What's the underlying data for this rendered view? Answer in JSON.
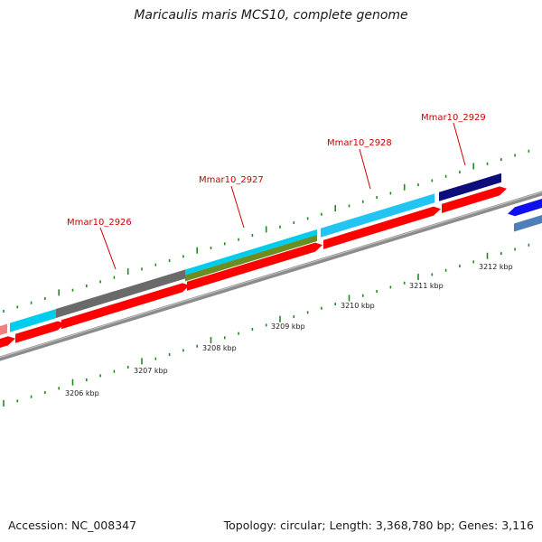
{
  "title": "Maricaulis maris MCS10, complete genome",
  "footer": {
    "accession": "Accession: NC_008347",
    "summary": "Topology: circular; Length: 3,368,780 bp; Genes: 3,116"
  },
  "colors": {
    "tick": "#1e8a1e",
    "backbone": "#8c8c8c",
    "gene_label": "#cc0000",
    "cds": "#ff0000",
    "gene_cyan": "#00ccee",
    "gene_light_blue": "#22c4f4",
    "gene_grey": "#6a6a6a",
    "gene_olive": "#6b8e23",
    "gene_navy": "#0c0c7a",
    "gene_blue": "#1010ee",
    "gene_steel": "#4f7fb8",
    "gene_pink": "#f08080"
  },
  "gene_labels": [
    {
      "text": "Mmar10_2926"
    },
    {
      "text": "Mmar10_2927"
    },
    {
      "text": "Mmar10_2928"
    },
    {
      "text": "Mmar10_2929"
    }
  ],
  "kbp_labels": [
    {
      "text": "3206 kbp"
    },
    {
      "text": "3207 kbp"
    },
    {
      "text": "3208 kbp"
    },
    {
      "text": "3209 kbp"
    },
    {
      "text": "3210 kbp"
    },
    {
      "text": "3211 kbp"
    },
    {
      "text": "3212 kbp"
    }
  ]
}
